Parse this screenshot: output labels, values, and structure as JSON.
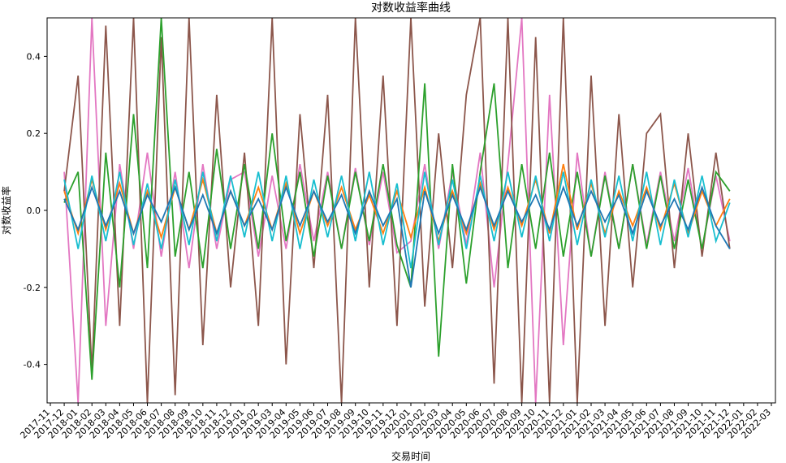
{
  "chart_data": {
    "type": "line",
    "title": "对数收益率曲线",
    "x_label": "交易时间",
    "y_label": "对数收益率",
    "x": [
      "2017-12",
      "2018-01",
      "2018-02",
      "2018-03",
      "2018-04",
      "2018-05",
      "2018-06",
      "2018-07",
      "2018-08",
      "2018-09",
      "2018-10",
      "2018-11",
      "2018-12",
      "2019-01",
      "2019-02",
      "2019-03",
      "2019-04",
      "2019-05",
      "2019-06",
      "2019-07",
      "2019-08",
      "2019-09",
      "2019-10",
      "2019-11",
      "2019-12",
      "2020-01",
      "2020-02",
      "2020-03",
      "2020-04",
      "2020-05",
      "2020-06",
      "2020-07",
      "2020-08",
      "2020-09",
      "2020-10",
      "2020-11",
      "2020-12",
      "2021-01",
      "2021-02",
      "2021-03",
      "2021-04",
      "2021-05",
      "2021-06",
      "2021-07",
      "2021-08",
      "2021-09",
      "2021-10",
      "2021-11",
      "2021-12"
    ],
    "series": [
      {
        "color": "#e377c2",
        "values": [
          0.1,
          -0.5,
          0.5,
          -0.3,
          0.12,
          -0.1,
          0.15,
          -0.12,
          0.1,
          -0.15,
          0.12,
          -0.1,
          0.08,
          0.1,
          -0.12,
          0.09,
          -0.1,
          0.12,
          -0.08,
          0.1,
          -0.1,
          0.11,
          -0.09,
          0.1,
          -0.11,
          -0.08,
          0.12,
          -0.1,
          0.1,
          -0.09,
          0.15,
          -0.2,
          0.12,
          0.5,
          -0.5,
          0.3,
          -0.35,
          0.15,
          -0.12,
          0.1,
          -0.1,
          0.12,
          -0.09,
          0.1,
          -0.08,
          0.11,
          -0.1,
          0.09,
          -0.08
        ]
      },
      {
        "color": "#8c564b",
        "values": [
          0.05,
          0.35,
          -0.42,
          0.48,
          -0.3,
          0.5,
          -0.5,
          0.45,
          -0.48,
          0.5,
          -0.35,
          0.3,
          -0.2,
          0.15,
          -0.3,
          0.5,
          -0.4,
          0.25,
          -0.15,
          0.3,
          -0.5,
          0.5,
          -0.2,
          0.35,
          -0.3,
          0.5,
          -0.25,
          0.2,
          -0.15,
          0.3,
          0.5,
          -0.45,
          0.5,
          -0.5,
          0.45,
          -0.5,
          0.5,
          -0.5,
          0.35,
          -0.3,
          0.25,
          -0.2,
          0.2,
          0.25,
          -0.15,
          0.2,
          -0.12,
          0.15,
          -0.1
        ]
      },
      {
        "color": "#2ca02c",
        "values": [
          0.02,
          0.1,
          -0.44,
          0.15,
          -0.2,
          0.25,
          -0.15,
          0.5,
          -0.12,
          0.1,
          -0.15,
          0.16,
          -0.1,
          0.12,
          -0.1,
          0.2,
          -0.08,
          0.1,
          -0.12,
          0.09,
          -0.1,
          0.1,
          -0.08,
          0.12,
          -0.09,
          -0.2,
          0.33,
          -0.38,
          0.12,
          -0.19,
          0.1,
          0.33,
          -0.15,
          0.12,
          -0.1,
          0.15,
          -0.12,
          0.1,
          -0.12,
          0.09,
          -0.1,
          0.12,
          -0.1,
          0.09,
          -0.1,
          0.08,
          -0.1,
          0.1,
          0.05
        ]
      },
      {
        "color": "#ff7f0e",
        "values": [
          0.05,
          -0.06,
          0.08,
          -0.05,
          0.07,
          -0.06,
          0.05,
          -0.07,
          0.06,
          -0.05,
          0.08,
          -0.06,
          0.05,
          -0.04,
          0.06,
          -0.05,
          0.07,
          -0.06,
          0.05,
          -0.04,
          0.06,
          -0.05,
          0.04,
          -0.06,
          0.05,
          -0.07,
          0.06,
          -0.08,
          0.05,
          -0.06,
          0.07,
          -0.05,
          0.06,
          -0.04,
          0.08,
          -0.06,
          0.12,
          -0.05,
          0.07,
          -0.06,
          0.05,
          -0.04,
          0.06,
          -0.05,
          0.07,
          -0.06,
          0.05,
          -0.04,
          0.03
        ]
      },
      {
        "color": "#17becf",
        "values": [
          0.08,
          -0.1,
          0.09,
          -0.08,
          0.1,
          -0.09,
          0.07,
          -0.1,
          0.08,
          -0.09,
          0.1,
          -0.08,
          0.09,
          -0.07,
          0.1,
          -0.08,
          0.09,
          -0.1,
          0.08,
          -0.07,
          0.09,
          -0.08,
          0.1,
          -0.09,
          0.07,
          -0.15,
          0.1,
          -0.09,
          0.08,
          -0.1,
          0.09,
          -0.08,
          0.1,
          -0.07,
          0.09,
          -0.08,
          0.1,
          -0.09,
          0.08,
          -0.07,
          0.09,
          -0.08,
          0.1,
          -0.09,
          0.08,
          -0.07,
          0.09,
          -0.08,
          0.02
        ]
      },
      {
        "color": "#1f77b4",
        "values": [
          0.03,
          -0.05,
          0.06,
          -0.04,
          0.05,
          -0.06,
          0.04,
          -0.03,
          0.06,
          -0.05,
          0.04,
          -0.06,
          0.05,
          -0.04,
          0.03,
          -0.05,
          0.06,
          -0.04,
          0.05,
          -0.03,
          0.04,
          -0.06,
          0.05,
          -0.04,
          0.03,
          -0.2,
          0.05,
          -0.06,
          0.04,
          -0.05,
          0.06,
          -0.04,
          0.05,
          -0.03,
          0.04,
          -0.05,
          0.06,
          -0.04,
          0.05,
          -0.03,
          0.04,
          -0.06,
          0.05,
          -0.04,
          0.03,
          -0.05,
          0.06,
          -0.04,
          -0.1
        ]
      }
    ],
    "xlim": [
      "2017-11",
      "2022-03"
    ],
    "xticks": [
      "2017-11",
      "2017-12",
      "2018-01",
      "2018-02",
      "2018-03",
      "2018-04",
      "2018-05",
      "2018-06",
      "2018-07",
      "2018-08",
      "2018-09",
      "2018-10",
      "2018-11",
      "2018-12",
      "2019-01",
      "2019-02",
      "2019-03",
      "2019-04",
      "2019-05",
      "2019-06",
      "2019-07",
      "2019-08",
      "2019-09",
      "2019-10",
      "2019-11",
      "2019-12",
      "2020-01",
      "2020-02",
      "2020-03",
      "2020-04",
      "2020-05",
      "2020-06",
      "2020-07",
      "2020-08",
      "2020-09",
      "2020-10",
      "2020-11",
      "2020-12",
      "2021-01",
      "2021-02",
      "2021-03",
      "2021-04",
      "2021-05",
      "2021-06",
      "2021-07",
      "2021-08",
      "2021-09",
      "2021-10",
      "2021-11",
      "2021-12",
      "2022-01",
      "2022-02",
      "2022-03"
    ],
    "ylim": [
      -0.5,
      0.5
    ],
    "yticks": [
      -0.4,
      -0.2,
      {
        "value": 0,
        "label": "0.0"
      },
      0.2,
      0.4
    ]
  }
}
